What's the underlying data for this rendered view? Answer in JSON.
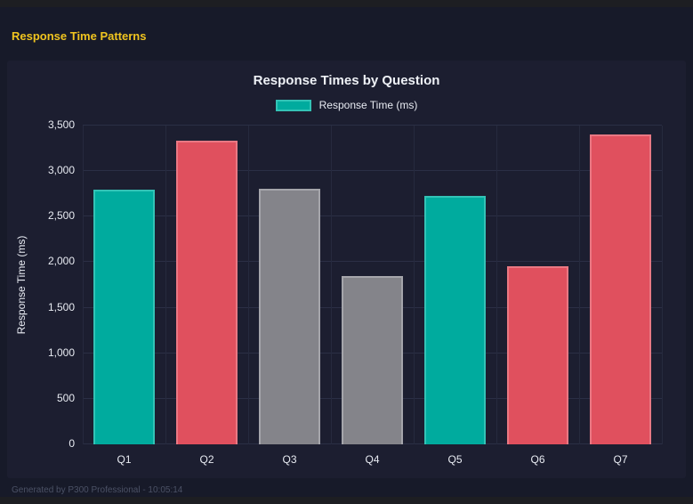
{
  "header": {
    "title": "Response Time Patterns"
  },
  "footer": {
    "text": "Generated by P300 Professional - 10:05:14"
  },
  "colors": {
    "page_background": "#171a29",
    "card_background": "#1c1e30",
    "window_strip": "#1d1e22",
    "header_title": "#f0c41f",
    "gridline": "#2b2f45",
    "tick_text": "#e8ebf2",
    "footer_text": "#4b5165"
  },
  "palette": {
    "teal": {
      "fill": "#00ab9e",
      "border": "#33c3b6"
    },
    "red": {
      "fill": "#e0505e",
      "border": "#e97883"
    },
    "gray": {
      "fill": "#84848a",
      "border": "#a5a5ab"
    }
  },
  "chart_data": {
    "type": "bar",
    "title": "Response Times by Question",
    "legend": {
      "label": "Response Time (ms)",
      "color": "#00ab9e",
      "position": "top"
    },
    "categories": [
      "Q1",
      "Q2",
      "Q3",
      "Q4",
      "Q5",
      "Q6",
      "Q7"
    ],
    "values": [
      2800,
      3330,
      2810,
      1850,
      2730,
      1960,
      3400
    ],
    "bar_colors": [
      "teal",
      "red",
      "gray",
      "gray",
      "teal",
      "red",
      "red"
    ],
    "xlabel": "",
    "ylabel": "Response Time (ms)",
    "ylim": [
      0,
      3500
    ],
    "ytick_step": 500,
    "ytick_labels": [
      "0",
      "500",
      "1,000",
      "1,500",
      "2,000",
      "2,500",
      "3,000",
      "3,500"
    ],
    "grid": true
  }
}
